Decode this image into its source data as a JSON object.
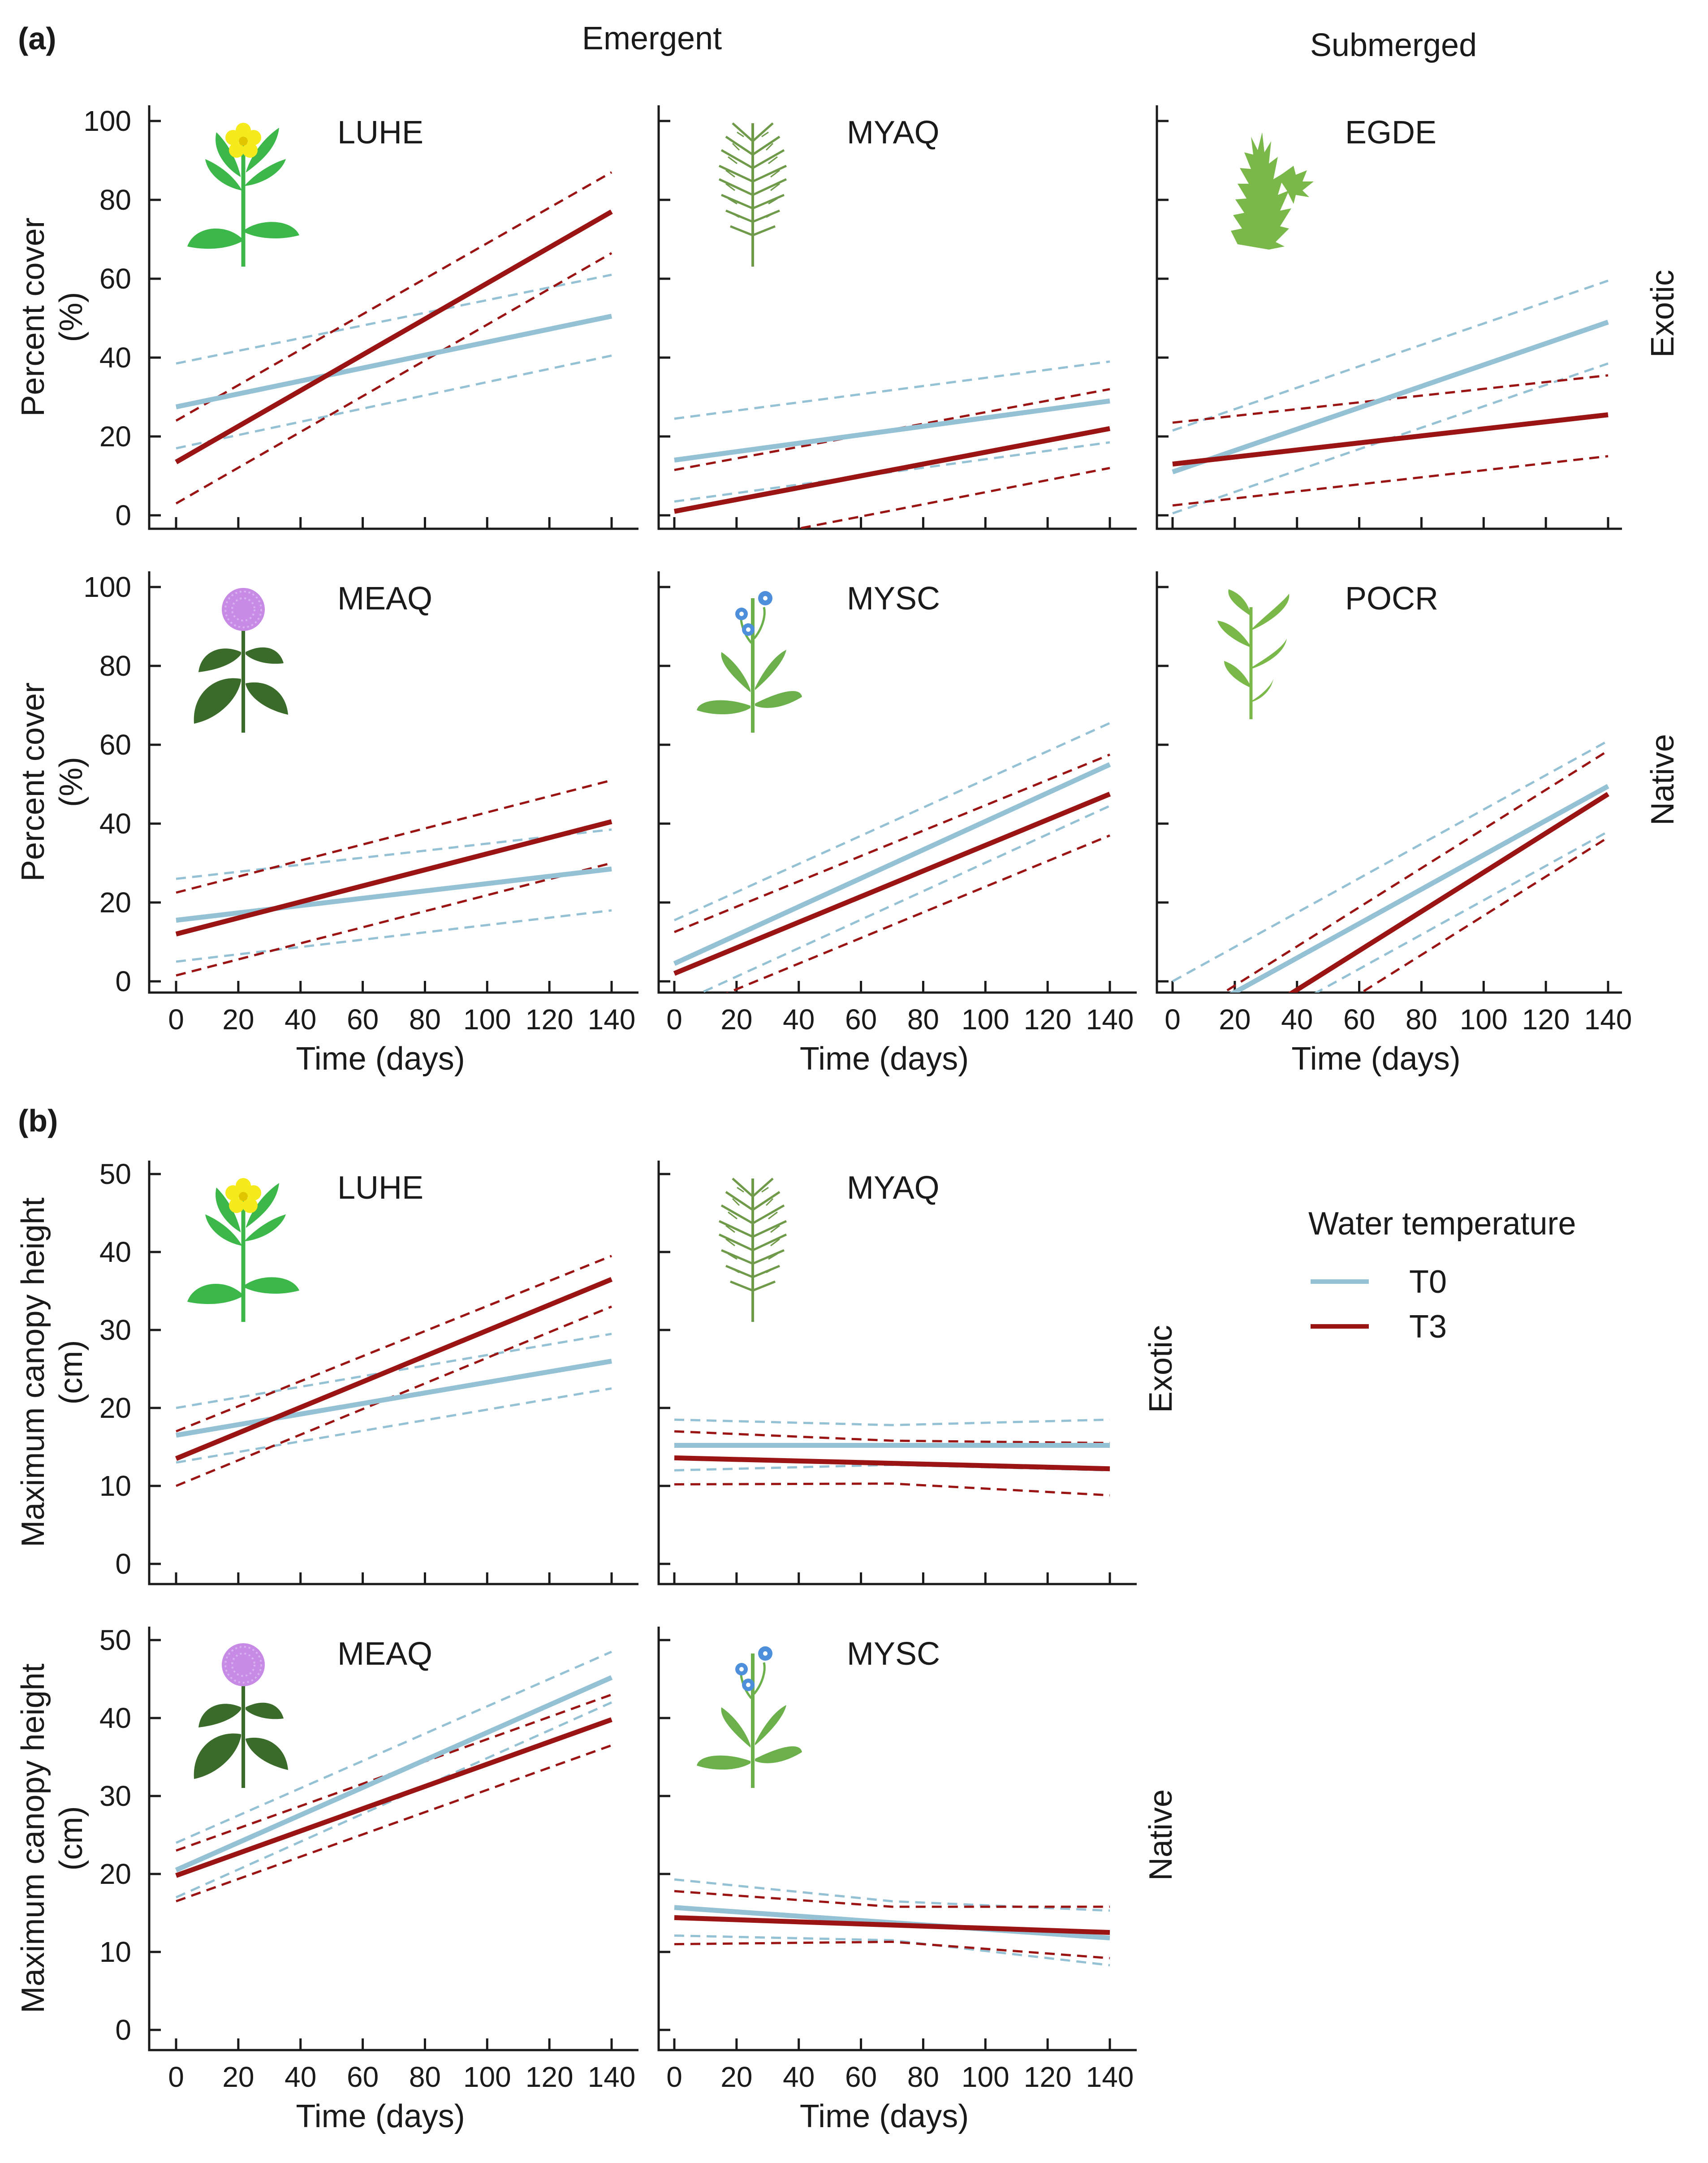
{
  "figure": {
    "label_a": "(a)",
    "label_b": "(b)",
    "col_emergent": "Emergent",
    "col_submerged": "Submerged",
    "row_exotic": "Exotic",
    "row_native": "Native",
    "legend_title": "Water temperature",
    "legend_t0": "T0",
    "legend_t3": "T3",
    "colors": {
      "T0": "#94c1d4",
      "T3": "#9b1414"
    }
  },
  "chart_data": [
    {
      "id": "a-luhe",
      "type": "line",
      "group": "a",
      "title": "LUHE",
      "icon": "yellow-flower-plant-icon",
      "xlabel": "",
      "ylabel": "Percent cover (%)",
      "ylabel_line1": "Percent cover",
      "ylabel_line2": "(%)",
      "xlim": [
        0,
        140
      ],
      "ylim": [
        0,
        100
      ],
      "xticks": [],
      "yticks": [
        "0",
        "20",
        "40",
        "60",
        "80",
        "100"
      ],
      "series": [
        {
          "name": "T0",
          "kind": "fit",
          "x": [
            0,
            140
          ],
          "y": [
            27.5,
            50.5
          ]
        },
        {
          "name": "T0",
          "kind": "ci",
          "x": [
            0,
            140
          ],
          "y": [
            38.5,
            61
          ]
        },
        {
          "name": "T0",
          "kind": "ci",
          "x": [
            0,
            140
          ],
          "y": [
            17,
            40.5
          ]
        },
        {
          "name": "T3",
          "kind": "fit",
          "x": [
            0,
            140
          ],
          "y": [
            13.5,
            77
          ]
        },
        {
          "name": "T3",
          "kind": "ci",
          "x": [
            0,
            140
          ],
          "y": [
            24,
            87
          ]
        },
        {
          "name": "T3",
          "kind": "ci",
          "x": [
            0,
            140
          ],
          "y": [
            3,
            66.5
          ]
        }
      ]
    },
    {
      "id": "a-myaq",
      "type": "line",
      "group": "a",
      "title": "MYAQ",
      "icon": "feathery-leaf-plant-icon",
      "xlabel": "",
      "ylabel": "",
      "xlim": [
        0,
        140
      ],
      "ylim": [
        0,
        100
      ],
      "xticks": [],
      "yticks": [],
      "series": [
        {
          "name": "T0",
          "kind": "fit",
          "x": [
            0,
            140
          ],
          "y": [
            14,
            29
          ]
        },
        {
          "name": "T0",
          "kind": "ci",
          "x": [
            0,
            140
          ],
          "y": [
            24.5,
            39
          ]
        },
        {
          "name": "T0",
          "kind": "ci",
          "x": [
            0,
            140
          ],
          "y": [
            3.5,
            18.5
          ]
        },
        {
          "name": "T3",
          "kind": "fit",
          "x": [
            0,
            140
          ],
          "y": [
            1,
            22
          ]
        },
        {
          "name": "T3",
          "kind": "ci",
          "x": [
            0,
            140
          ],
          "y": [
            11.5,
            32
          ]
        },
        {
          "name": "T3",
          "kind": "ci",
          "x": [
            0,
            140
          ],
          "y": [
            -9.5,
            12
          ]
        }
      ]
    },
    {
      "id": "a-egde",
      "type": "line",
      "group": "a",
      "title": "EGDE",
      "icon": "submerged-bushy-plant-icon",
      "xlabel": "",
      "ylabel": "",
      "xlim": [
        0,
        140
      ],
      "ylim": [
        0,
        100
      ],
      "xticks": [],
      "yticks": [],
      "series": [
        {
          "name": "T0",
          "kind": "fit",
          "x": [
            0,
            140
          ],
          "y": [
            11,
            49
          ]
        },
        {
          "name": "T0",
          "kind": "ci",
          "x": [
            0,
            140
          ],
          "y": [
            21.5,
            59.5
          ]
        },
        {
          "name": "T0",
          "kind": "ci",
          "x": [
            0,
            140
          ],
          "y": [
            0.5,
            38.5
          ]
        },
        {
          "name": "T3",
          "kind": "fit",
          "x": [
            0,
            140
          ],
          "y": [
            13,
            25.5
          ]
        },
        {
          "name": "T3",
          "kind": "ci",
          "x": [
            0,
            140
          ],
          "y": [
            23.5,
            35.5
          ]
        },
        {
          "name": "T3",
          "kind": "ci",
          "x": [
            0,
            140
          ],
          "y": [
            2.5,
            15
          ]
        }
      ]
    },
    {
      "id": "a-meaq",
      "type": "line",
      "group": "a",
      "title": "MEAQ",
      "icon": "purple-pompom-plant-icon",
      "xlabel": "Time (days)",
      "ylabel": "Percent cover (%)",
      "ylabel_line1": "Percent cover",
      "ylabel_line2": "(%)",
      "xlim": [
        0,
        140
      ],
      "ylim": [
        0,
        100
      ],
      "xticks": [
        "0",
        "20",
        "40",
        "60",
        "80",
        "100",
        "120",
        "140"
      ],
      "yticks": [
        "0",
        "20",
        "40",
        "60",
        "80",
        "100"
      ],
      "series": [
        {
          "name": "T0",
          "kind": "fit",
          "x": [
            0,
            140
          ],
          "y": [
            15.5,
            28.5
          ]
        },
        {
          "name": "T0",
          "kind": "ci",
          "x": [
            0,
            140
          ],
          "y": [
            26,
            38.5
          ]
        },
        {
          "name": "T0",
          "kind": "ci",
          "x": [
            0,
            140
          ],
          "y": [
            5,
            18
          ]
        },
        {
          "name": "T3",
          "kind": "fit",
          "x": [
            0,
            140
          ],
          "y": [
            12,
            40.5
          ]
        },
        {
          "name": "T3",
          "kind": "ci",
          "x": [
            0,
            140
          ],
          "y": [
            22.5,
            51
          ]
        },
        {
          "name": "T3",
          "kind": "ci",
          "x": [
            0,
            140
          ],
          "y": [
            1.5,
            30
          ]
        }
      ]
    },
    {
      "id": "a-mysc",
      "type": "line",
      "group": "a",
      "title": "MYSC",
      "icon": "blue-forget-me-not-plant-icon",
      "xlabel": "Time (days)",
      "ylabel": "",
      "xlim": [
        0,
        140
      ],
      "ylim": [
        0,
        100
      ],
      "xticks": [
        "0",
        "20",
        "40",
        "60",
        "80",
        "100",
        "120",
        "140"
      ],
      "yticks": [],
      "series": [
        {
          "name": "T0",
          "kind": "fit",
          "x": [
            0,
            140
          ],
          "y": [
            4.5,
            55
          ]
        },
        {
          "name": "T0",
          "kind": "ci",
          "x": [
            0,
            140
          ],
          "y": [
            15.5,
            65.5
          ]
        },
        {
          "name": "T0",
          "kind": "ci",
          "x": [
            0,
            140
          ],
          "y": [
            -6,
            44.5
          ]
        },
        {
          "name": "T3",
          "kind": "fit",
          "x": [
            0,
            140
          ],
          "y": [
            2,
            47.5
          ]
        },
        {
          "name": "T3",
          "kind": "ci",
          "x": [
            0,
            140
          ],
          "y": [
            12.5,
            57.5
          ]
        },
        {
          "name": "T3",
          "kind": "ci",
          "x": [
            0,
            140
          ],
          "y": [
            -8.5,
            37
          ]
        }
      ]
    },
    {
      "id": "a-pocr",
      "type": "line",
      "group": "a",
      "title": "POCR",
      "icon": "wavy-leaf-plant-icon",
      "xlabel": "Time (days)",
      "ylabel": "",
      "xlim": [
        0,
        140
      ],
      "ylim": [
        0,
        100
      ],
      "xticks": [
        "0",
        "20",
        "40",
        "60",
        "80",
        "100",
        "120",
        "140"
      ],
      "yticks": [],
      "series": [
        {
          "name": "T0",
          "kind": "fit",
          "x": [
            0,
            140
          ],
          "y": [
            -11.5,
            49.5
          ]
        },
        {
          "name": "T0",
          "kind": "ci",
          "x": [
            0,
            140
          ],
          "y": [
            0,
            61
          ]
        },
        {
          "name": "T0",
          "kind": "ci",
          "x": [
            0,
            140
          ],
          "y": [
            -23,
            38
          ]
        },
        {
          "name": "T3",
          "kind": "fit",
          "x": [
            0,
            140
          ],
          "y": [
            -22,
            47.5
          ]
        },
        {
          "name": "T3",
          "kind": "ci",
          "x": [
            0,
            140
          ],
          "y": [
            -11,
            58.5
          ]
        },
        {
          "name": "T3",
          "kind": "ci",
          "x": [
            0,
            140
          ],
          "y": [
            -33,
            36.5
          ]
        }
      ]
    },
    {
      "id": "b-luhe",
      "type": "line",
      "group": "b",
      "title": "LUHE",
      "icon": "yellow-flower-plant-icon",
      "xlabel": "",
      "ylabel": "Maximum canopy height (cm)",
      "ylabel_line1": "Maximum canopy height",
      "ylabel_line2": "(cm)",
      "xlim": [
        0,
        140
      ],
      "ylim": [
        0,
        50
      ],
      "xticks": [],
      "yticks": [
        "0",
        "10",
        "20",
        "30",
        "40",
        "50"
      ],
      "series": [
        {
          "name": "T0",
          "kind": "fit",
          "x": [
            0,
            140
          ],
          "y": [
            16.5,
            26
          ]
        },
        {
          "name": "T0",
          "kind": "ci",
          "x": [
            0,
            140
          ],
          "y": [
            20,
            29.5
          ]
        },
        {
          "name": "T0",
          "kind": "ci",
          "x": [
            0,
            140
          ],
          "y": [
            13,
            22.5
          ]
        },
        {
          "name": "T3",
          "kind": "fit",
          "x": [
            0,
            140
          ],
          "y": [
            13.5,
            36.5
          ]
        },
        {
          "name": "T3",
          "kind": "ci",
          "x": [
            0,
            140
          ],
          "y": [
            17,
            39.5
          ]
        },
        {
          "name": "T3",
          "kind": "ci",
          "x": [
            0,
            140
          ],
          "y": [
            10,
            33
          ]
        }
      ]
    },
    {
      "id": "b-myaq",
      "type": "line",
      "group": "b",
      "title": "MYAQ",
      "icon": "feathery-leaf-plant-icon",
      "xlabel": "",
      "ylabel": "",
      "xlim": [
        0,
        140
      ],
      "ylim": [
        0,
        50
      ],
      "xticks": [],
      "yticks": [],
      "series": [
        {
          "name": "T0",
          "kind": "fit",
          "x": [
            0,
            140
          ],
          "y": [
            15.2,
            15.2
          ]
        },
        {
          "name": "T0",
          "kind": "ci",
          "x": [
            0,
            70,
            140
          ],
          "y": [
            18.5,
            17.8,
            18.5
          ]
        },
        {
          "name": "T0",
          "kind": "ci",
          "x": [
            0,
            70,
            140
          ],
          "y": [
            12,
            12.7,
            12
          ]
        },
        {
          "name": "T3",
          "kind": "fit",
          "x": [
            0,
            140
          ],
          "y": [
            13.6,
            12.2
          ]
        },
        {
          "name": "T3",
          "kind": "ci",
          "x": [
            0,
            70,
            140
          ],
          "y": [
            17,
            15.8,
            15.5
          ]
        },
        {
          "name": "T3",
          "kind": "ci",
          "x": [
            0,
            70,
            140
          ],
          "y": [
            10.2,
            10.3,
            8.8
          ]
        }
      ]
    },
    {
      "id": "b-meaq",
      "type": "line",
      "group": "b",
      "title": "MEAQ",
      "icon": "purple-pompom-plant-icon",
      "xlabel": "Time (days)",
      "ylabel": "Maximum canopy height (cm)",
      "ylabel_line1": "Maximum canopy height",
      "ylabel_line2": "(cm)",
      "xlim": [
        0,
        140
      ],
      "ylim": [
        0,
        50
      ],
      "xticks": [
        "0",
        "20",
        "40",
        "60",
        "80",
        "100",
        "120",
        "140"
      ],
      "yticks": [
        "0",
        "10",
        "20",
        "30",
        "40",
        "50"
      ],
      "series": [
        {
          "name": "T0",
          "kind": "fit",
          "x": [
            0,
            140
          ],
          "y": [
            20.5,
            45.2
          ]
        },
        {
          "name": "T0",
          "kind": "ci",
          "x": [
            0,
            140
          ],
          "y": [
            24,
            48.5
          ]
        },
        {
          "name": "T0",
          "kind": "ci",
          "x": [
            0,
            140
          ],
          "y": [
            17,
            42
          ]
        },
        {
          "name": "T3",
          "kind": "fit",
          "x": [
            0,
            140
          ],
          "y": [
            19.8,
            39.8
          ]
        },
        {
          "name": "T3",
          "kind": "ci",
          "x": [
            0,
            140
          ],
          "y": [
            23,
            43
          ]
        },
        {
          "name": "T3",
          "kind": "ci",
          "x": [
            0,
            140
          ],
          "y": [
            16.5,
            36.5
          ]
        }
      ]
    },
    {
      "id": "b-mysc",
      "type": "line",
      "group": "b",
      "title": "MYSC",
      "icon": "blue-forget-me-not-plant-icon",
      "xlabel": "Time (days)",
      "ylabel": "",
      "xlim": [
        0,
        140
      ],
      "ylim": [
        0,
        50
      ],
      "xticks": [
        "0",
        "20",
        "40",
        "60",
        "80",
        "100",
        "120",
        "140"
      ],
      "yticks": [],
      "series": [
        {
          "name": "T0",
          "kind": "fit",
          "x": [
            0,
            140
          ],
          "y": [
            15.7,
            11.8
          ]
        },
        {
          "name": "T0",
          "kind": "ci",
          "x": [
            0,
            70,
            140
          ],
          "y": [
            19.3,
            16.5,
            15.3
          ]
        },
        {
          "name": "T0",
          "kind": "ci",
          "x": [
            0,
            70,
            140
          ],
          "y": [
            12.1,
            11.5,
            8.3
          ]
        },
        {
          "name": "T3",
          "kind": "fit",
          "x": [
            0,
            140
          ],
          "y": [
            14.4,
            12.5
          ]
        },
        {
          "name": "T3",
          "kind": "ci",
          "x": [
            0,
            70,
            140
          ],
          "y": [
            17.8,
            15.8,
            15.8
          ]
        },
        {
          "name": "T3",
          "kind": "ci",
          "x": [
            0,
            70,
            140
          ],
          "y": [
            11,
            11.3,
            9.2
          ]
        }
      ]
    }
  ]
}
